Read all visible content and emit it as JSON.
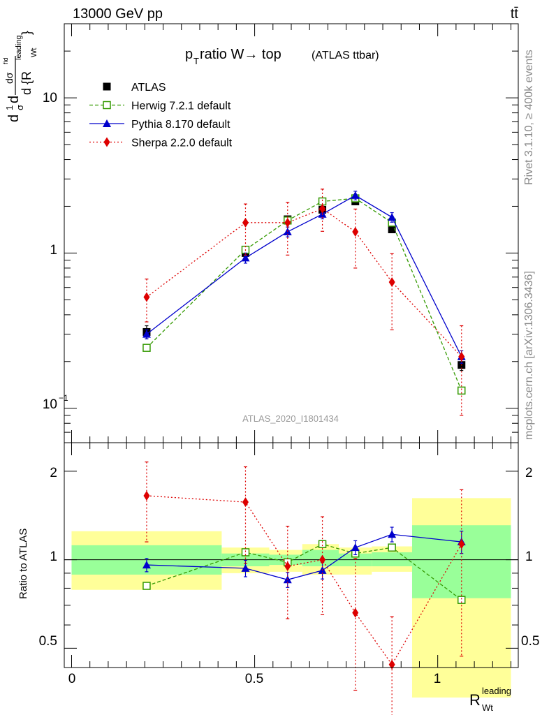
{
  "header": {
    "energy_label": "13000 GeV pp",
    "process_label": "tt̄",
    "plot_title_main": "p",
    "plot_title_sub": "T",
    "plot_title_rest": " ratio W→ top",
    "plot_title_small": "(ATLAS ttbar)",
    "analysis_id": "ATLAS_2020_I1801434",
    "side_label_top": "Rivet 3.1.10, ≥ 400k events",
    "side_label_bottom": "mcplots.cern.ch [arXiv:1306.3436]"
  },
  "axes": {
    "main_ylabel_lines": [
      "d",
      "1",
      "σ",
      "d",
      "dσ",
      "fid",
      "d {R",
      "leading",
      "Wt",
      "}"
    ],
    "ratio_ylabel": "Ratio to ATLAS",
    "xlabel_main": "R",
    "xlabel_sup": "leading",
    "xlabel_sub": "Wt",
    "main_ytick_labels": [
      "10",
      "−1",
      "1",
      "10"
    ],
    "ratio_ytick_labels": [
      "0.5",
      "1",
      "2"
    ],
    "xtick_labels": [
      "0",
      "0.5",
      "1"
    ]
  },
  "legend": [
    {
      "label": "ATLAS",
      "color": "#000000",
      "marker": "filled-square",
      "line": "none"
    },
    {
      "label": "Herwig 7.2.1 default",
      "color": "#339900",
      "marker": "open-square",
      "line": "dashed"
    },
    {
      "label": "Pythia 8.170 default",
      "color": "#0000cc",
      "marker": "filled-triangle",
      "line": "solid"
    },
    {
      "label": "Sherpa 2.2.0 default",
      "color": "#dd0000",
      "marker": "filled-diamond",
      "line": "dotted"
    }
  ],
  "chart_data": [
    {
      "type": "scatter",
      "panel": "main",
      "yscale": "log",
      "xlim": [
        -0.02,
        1.22
      ],
      "ylim": [
        0.06,
        30
      ],
      "bins": [
        [
          0.0,
          0.41
        ],
        [
          0.41,
          0.54
        ],
        [
          0.54,
          0.63
        ],
        [
          0.63,
          0.73
        ],
        [
          0.73,
          0.82
        ],
        [
          0.82,
          0.93
        ],
        [
          0.93,
          1.2
        ]
      ],
      "x": [
        0.205,
        0.475,
        0.59,
        0.685,
        0.775,
        0.875,
        1.065
      ],
      "series": [
        {
          "name": "ATLAS",
          "values": [
            0.31,
            1.0,
            1.65,
            1.9,
            2.15,
            1.42,
            0.19
          ],
          "yerr": [
            0.03,
            0.05,
            0.06,
            0.07,
            0.08,
            0.06,
            0.015
          ]
        },
        {
          "name": "Herwig 7.2.1 default",
          "values": [
            0.245,
            1.05,
            1.62,
            2.15,
            2.25,
            1.57,
            0.13
          ]
        },
        {
          "name": "Pythia 8.170 default",
          "values": [
            0.3,
            0.93,
            1.37,
            1.78,
            2.35,
            1.7,
            0.215
          ],
          "yerr": [
            0.02,
            0.07,
            0.1,
            0.12,
            0.15,
            0.12,
            0.02
          ]
        },
        {
          "name": "Sherpa 2.2.0 default",
          "values": [
            0.52,
            1.57,
            1.57,
            1.93,
            1.37,
            0.65,
            0.215
          ],
          "yerr_low": [
            0.16,
            0.6,
            0.6,
            0.55,
            0.57,
            0.33,
            0.125
          ],
          "yerr_high": [
            0.16,
            0.5,
            0.55,
            0.65,
            0.55,
            0.34,
            0.125
          ]
        }
      ]
    },
    {
      "type": "scatter",
      "panel": "ratio",
      "yscale": "log",
      "xlim": [
        -0.02,
        1.22
      ],
      "ylim": [
        0.43,
        2.5
      ],
      "bands": [
        {
          "x0": 0.0,
          "x1": 0.41,
          "inner": [
            0.89,
            1.12
          ],
          "outer": [
            0.79,
            1.25
          ]
        },
        {
          "x0": 0.41,
          "x1": 0.54,
          "inner": [
            0.95,
            1.05
          ],
          "outer": [
            0.9,
            1.1
          ]
        },
        {
          "x0": 0.54,
          "x1": 0.63,
          "inner": [
            0.96,
            1.04
          ],
          "outer": [
            0.91,
            1.08
          ]
        },
        {
          "x0": 0.63,
          "x1": 0.73,
          "inner": [
            0.95,
            1.08
          ],
          "outer": [
            0.89,
            1.13
          ]
        },
        {
          "x0": 0.73,
          "x1": 0.82,
          "inner": [
            0.95,
            1.05
          ],
          "outer": [
            0.89,
            1.1
          ]
        },
        {
          "x0": 0.82,
          "x1": 0.93,
          "inner": [
            0.95,
            1.06
          ],
          "outer": [
            0.91,
            1.11
          ]
        },
        {
          "x0": 0.93,
          "x1": 1.2,
          "inner": [
            0.74,
            1.31
          ],
          "outer": [
            0.34,
            1.62
          ]
        }
      ],
      "x": [
        0.205,
        0.475,
        0.59,
        0.685,
        0.775,
        0.875,
        1.065
      ],
      "series": [
        {
          "name": "Herwig 7.2.1 default",
          "values": [
            0.815,
            1.06,
            0.98,
            1.13,
            1.05,
            1.1,
            0.73
          ]
        },
        {
          "name": "Pythia 8.170 default",
          "values": [
            0.96,
            0.935,
            0.855,
            0.92,
            1.1,
            1.22,
            1.15
          ],
          "yerr": [
            0.05,
            0.06,
            0.05,
            0.06,
            0.06,
            0.07,
            0.1
          ]
        },
        {
          "name": "Sherpa 2.2.0 default",
          "values": [
            1.65,
            1.57,
            0.95,
            1.0,
            0.66,
            0.44,
            1.13
          ],
          "yerr_low": [
            0.5,
            0.6,
            0.32,
            0.35,
            0.3,
            0.15,
            0.66
          ],
          "yerr_high": [
            0.5,
            0.5,
            0.35,
            0.4,
            0.35,
            0.2,
            0.6
          ]
        }
      ]
    }
  ]
}
